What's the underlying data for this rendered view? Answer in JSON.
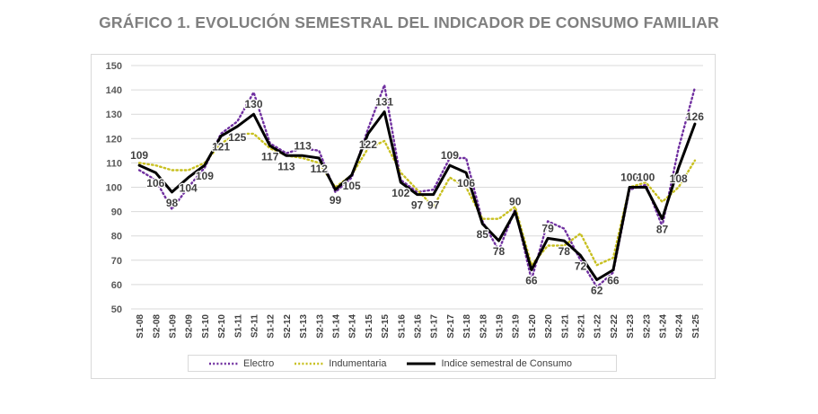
{
  "chart_data": {
    "type": "line",
    "title": "GRÁFICO 1. EVOLUCIÓN SEMESTRAL DEL INDICADOR DE CONSUMO FAMILIAR",
    "xlabel": "",
    "ylabel": "",
    "ylim": [
      50,
      150
    ],
    "yticks": [
      50,
      60,
      70,
      80,
      90,
      100,
      110,
      120,
      130,
      140,
      150
    ],
    "grid": true,
    "legend_position": "bottom",
    "categories": [
      "S1-08",
      "S2-08",
      "S1-09",
      "S2-09",
      "S1-10",
      "S2-10",
      "S1-11",
      "S2-11",
      "S1-12",
      "S2-12",
      "S1-13",
      "S2-13",
      "S1-14",
      "S2-14",
      "S1-15",
      "S2-15",
      "S1-16",
      "S2-16",
      "S1-17",
      "S2-17",
      "S1-18",
      "S2-18",
      "S1-19",
      "S2-19",
      "S1-20",
      "S2-20",
      "S1-21",
      "S2-21",
      "S1-22",
      "S2-22",
      "S1-23",
      "S2-23",
      "S1-24",
      "S2-24",
      "S1-25"
    ],
    "series": [
      {
        "name": "Electro",
        "color": "#7030a0",
        "style": "dotted",
        "values": [
          107,
          103,
          91,
          100,
          108,
          122,
          127,
          139,
          118,
          114,
          116,
          115,
          98,
          104,
          124,
          142,
          103,
          98,
          99,
          112,
          112,
          86,
          74,
          91,
          62,
          86,
          83,
          70,
          59,
          65,
          99,
          101,
          84,
          116,
          141
        ]
      },
      {
        "name": "Indumentaria",
        "color": "#c8c020",
        "style": "dotted",
        "values": [
          110,
          109,
          107,
          107,
          110,
          118,
          122,
          122,
          116,
          113,
          112,
          110,
          100,
          105,
          116,
          119,
          106,
          99,
          92,
          104,
          100,
          87,
          87,
          92,
          68,
          76,
          76,
          81,
          68,
          71,
          100,
          102,
          94,
          100,
          111
        ]
      },
      {
        "name": "Indice semestral de Consumo",
        "color": "#000000",
        "style": "solid",
        "values": [
          109,
          106,
          98,
          104,
          109,
          121,
          125,
          130,
          117,
          113,
          113,
          112,
          99,
          105,
          122,
          131,
          102,
          97,
          97,
          109,
          106,
          85,
          78,
          90,
          66,
          79,
          78,
          72,
          62,
          66,
          100,
          100,
          87,
          108,
          126
        ]
      }
    ],
    "data_labels": [
      109,
      106,
      98,
      104,
      109,
      121,
      125,
      130,
      117,
      113,
      113,
      112,
      99,
      105,
      122,
      131,
      102,
      97,
      97,
      109,
      106,
      85,
      78,
      90,
      66,
      79,
      78,
      72,
      62,
      66,
      100,
      100,
      87,
      108,
      126
    ],
    "data_label_series": "Indice semestral de Consumo"
  }
}
